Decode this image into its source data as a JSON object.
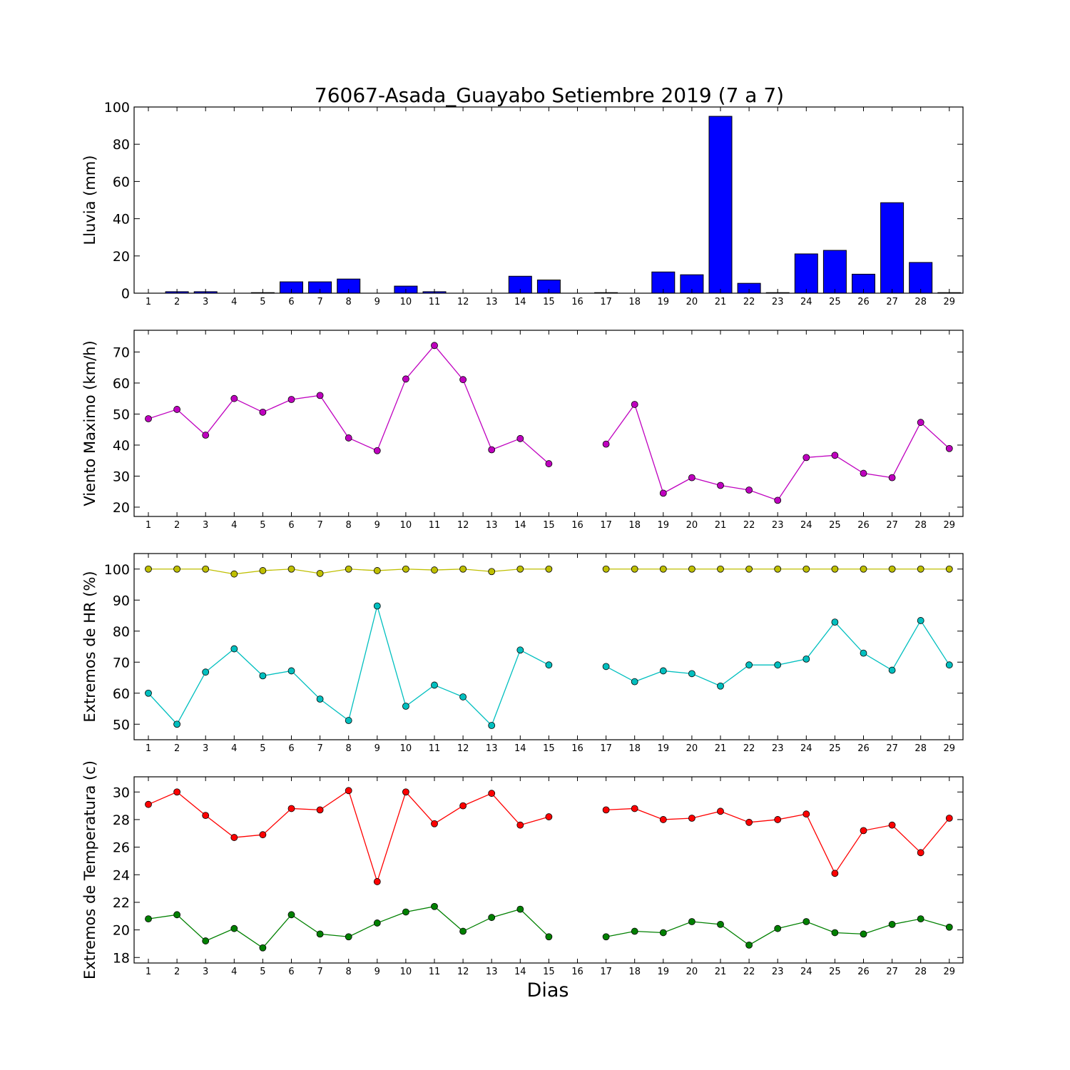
{
  "chart_data": {
    "title": "76067-Asada_Guayabo Setiembre 2019  (7 a 7)",
    "xlabel": "Dias",
    "days": [
      1,
      2,
      3,
      4,
      5,
      6,
      7,
      8,
      9,
      10,
      11,
      12,
      13,
      14,
      15,
      16,
      17,
      18,
      19,
      20,
      21,
      22,
      23,
      24,
      25,
      26,
      27,
      28,
      29
    ],
    "panels": [
      {
        "type": "bar",
        "ylabel": "Lluvia (mm)",
        "ylim": [
          0,
          100
        ],
        "yticks": [
          0,
          20,
          40,
          60,
          80,
          100
        ],
        "series": [
          {
            "color": "#0000ff",
            "values": [
              0,
              0.8,
              0.8,
              0,
              0.3,
              6.1,
              6.1,
              7.6,
              0,
              3.8,
              0.8,
              0,
              0,
              9.1,
              7.1,
              0,
              0.3,
              0,
              11.4,
              9.9,
              95,
              5.3,
              0.3,
              21.1,
              23,
              10.2,
              48.6,
              16.5,
              0.3
            ]
          }
        ]
      },
      {
        "type": "line",
        "ylabel": "Viento Maximo (km/h)",
        "ylim": [
          17,
          77
        ],
        "yticks": [
          20,
          30,
          40,
          50,
          60,
          70
        ],
        "series": [
          {
            "color": "#bf00bf",
            "values": [
              48.5,
              51.5,
              43.2,
              55,
              50.6,
              54.7,
              56,
              42.3,
              38.2,
              61.3,
              72.1,
              61.1,
              38.5,
              42.1,
              34,
              null,
              40.3,
              53.1,
              24.5,
              29.5,
              27,
              25.5,
              22.2,
              36,
              36.7,
              30.9,
              29.5,
              47.3,
              38.9
            ]
          }
        ]
      },
      {
        "type": "line",
        "ylabel": "Extremos de HR (%)",
        "ylim": [
          45,
          105
        ],
        "yticks": [
          50,
          60,
          70,
          80,
          90,
          100
        ],
        "series": [
          {
            "color": "#bfbf00",
            "values": [
              100,
              100,
              100,
              98.4,
              99.5,
              100,
              98.6,
              100,
              99.5,
              100,
              99.7,
              100,
              99.2,
              100,
              100,
              null,
              100,
              100,
              100,
              100,
              100,
              100,
              100,
              100,
              100,
              100,
              100,
              100,
              100
            ]
          },
          {
            "color": "#00bfbf",
            "values": [
              60,
              50,
              66.8,
              74.3,
              65.6,
              67.2,
              58.1,
              51.2,
              88.1,
              55.8,
              62.6,
              58.8,
              49.6,
              73.9,
              69.1,
              null,
              68.6,
              63.7,
              67.2,
              66.3,
              62.3,
              69.1,
              69.1,
              71,
              82.9,
              72.9,
              67.4,
              83.4,
              69.1
            ]
          }
        ]
      },
      {
        "type": "line",
        "ylabel": "Extremos de Temperatura (c)",
        "ylim": [
          17.6,
          31.1
        ],
        "yticks": [
          18,
          20,
          22,
          24,
          26,
          28,
          30
        ],
        "series": [
          {
            "color": "#ff0000",
            "values": [
              29.1,
              30,
              28.3,
              26.7,
              26.9,
              28.8,
              28.7,
              30.1,
              23.5,
              30,
              27.7,
              29,
              29.9,
              27.6,
              28.2,
              null,
              28.7,
              28.8,
              28,
              28.1,
              28.6,
              27.8,
              28,
              28.4,
              24.1,
              27.2,
              27.6,
              25.6,
              28.1
            ]
          },
          {
            "color": "#008000",
            "values": [
              20.8,
              21.1,
              19.2,
              20.1,
              18.7,
              21.1,
              19.7,
              19.5,
              20.5,
              21.3,
              21.7,
              19.9,
              20.9,
              21.5,
              19.5,
              null,
              19.5,
              19.9,
              19.8,
              20.6,
              20.4,
              18.9,
              20.1,
              20.6,
              19.8,
              19.7,
              20.4,
              20.8,
              20.2
            ]
          }
        ]
      }
    ]
  }
}
